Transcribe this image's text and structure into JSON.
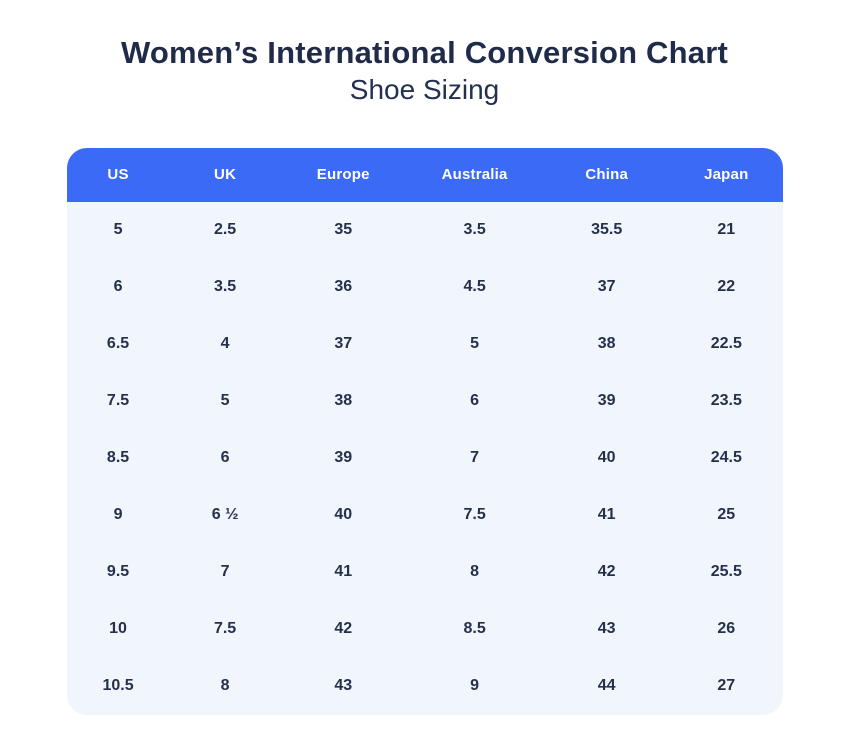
{
  "page": {
    "title": "Women’s International Conversion Chart",
    "subtitle": "Shoe Sizing"
  },
  "colors": {
    "header_bg": "#3a6af6",
    "header_text": "#ffffff",
    "table_bg": "#f1f5fc",
    "text": "#25304b",
    "title_text": "#1f2b48"
  },
  "chart_data": {
    "type": "table",
    "title": "Women’s International Conversion Chart",
    "subtitle": "Shoe Sizing",
    "columns": [
      "US",
      "UK",
      "Europe",
      "Australia",
      "China",
      "Japan"
    ],
    "rows": [
      [
        "5",
        "2.5",
        "35",
        "3.5",
        "35.5",
        "21"
      ],
      [
        "6",
        "3.5",
        "36",
        "4.5",
        "37",
        "22"
      ],
      [
        "6.5",
        "4",
        "37",
        "5",
        "38",
        "22.5"
      ],
      [
        "7.5",
        "5",
        "38",
        "6",
        "39",
        "23.5"
      ],
      [
        "8.5",
        "6",
        "39",
        "7",
        "40",
        "24.5"
      ],
      [
        "9",
        "6 ½",
        "40",
        "7.5",
        "41",
        "25"
      ],
      [
        "9.5",
        "7",
        "41",
        "8",
        "42",
        "25.5"
      ],
      [
        "10",
        "7.5",
        "42",
        "8.5",
        "43",
        "26"
      ],
      [
        "10.5",
        "8",
        "43",
        "9",
        "44",
        "27"
      ]
    ]
  }
}
